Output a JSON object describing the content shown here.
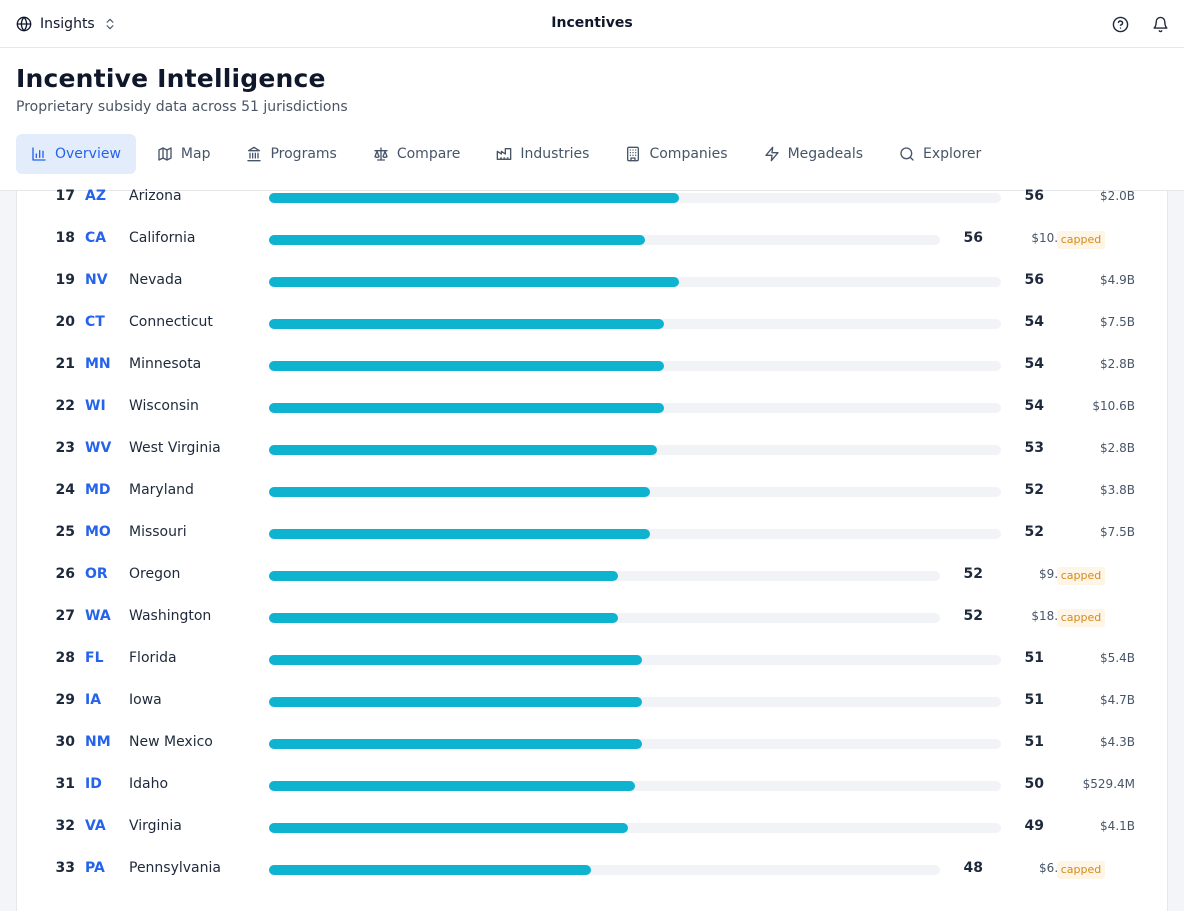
{
  "topbar": {
    "workspace_label": "Insights",
    "title": "Incentives"
  },
  "header": {
    "title": "Incentive Intelligence",
    "subtitle": "Proprietary subsidy data across 51 jurisdictions"
  },
  "tabs": [
    {
      "label": "Overview",
      "icon": "bar-chart-icon",
      "active": true
    },
    {
      "label": "Map",
      "icon": "map-icon",
      "active": false
    },
    {
      "label": "Programs",
      "icon": "landmark-icon",
      "active": false
    },
    {
      "label": "Compare",
      "icon": "scale-icon",
      "active": false
    },
    {
      "label": "Industries",
      "icon": "factory-icon",
      "active": false
    },
    {
      "label": "Companies",
      "icon": "building-icon",
      "active": false
    },
    {
      "label": "Megadeals",
      "icon": "zap-icon",
      "active": false
    },
    {
      "label": "Explorer",
      "icon": "search-icon",
      "active": false
    }
  ],
  "colors": {
    "accent": "#2563eb",
    "bar_fill": "#0db3cf",
    "bar_track": "#f1f3f6",
    "badge_text": "#d68a1a",
    "badge_bg": "#fef5e7"
  },
  "score_max": 100,
  "rankings": [
    {
      "rank": "17",
      "code": "AZ",
      "name": "Arizona",
      "score": "56",
      "amount": "$2.0B",
      "capped": false
    },
    {
      "rank": "18",
      "code": "CA",
      "name": "California",
      "score": "56",
      "amount": "$10.1B",
      "capped": true
    },
    {
      "rank": "19",
      "code": "NV",
      "name": "Nevada",
      "score": "56",
      "amount": "$4.9B",
      "capped": false
    },
    {
      "rank": "20",
      "code": "CT",
      "name": "Connecticut",
      "score": "54",
      "amount": "$7.5B",
      "capped": false
    },
    {
      "rank": "21",
      "code": "MN",
      "name": "Minnesota",
      "score": "54",
      "amount": "$2.8B",
      "capped": false
    },
    {
      "rank": "22",
      "code": "WI",
      "name": "Wisconsin",
      "score": "54",
      "amount": "$10.6B",
      "capped": false
    },
    {
      "rank": "23",
      "code": "WV",
      "name": "West Virginia",
      "score": "53",
      "amount": "$2.8B",
      "capped": false
    },
    {
      "rank": "24",
      "code": "MD",
      "name": "Maryland",
      "score": "52",
      "amount": "$3.8B",
      "capped": false
    },
    {
      "rank": "25",
      "code": "MO",
      "name": "Missouri",
      "score": "52",
      "amount": "$7.5B",
      "capped": false
    },
    {
      "rank": "26",
      "code": "OR",
      "name": "Oregon",
      "score": "52",
      "amount": "$9.7B",
      "capped": true
    },
    {
      "rank": "27",
      "code": "WA",
      "name": "Washington",
      "score": "52",
      "amount": "$18.9B",
      "capped": true
    },
    {
      "rank": "28",
      "code": "FL",
      "name": "Florida",
      "score": "51",
      "amount": "$5.4B",
      "capped": false
    },
    {
      "rank": "29",
      "code": "IA",
      "name": "Iowa",
      "score": "51",
      "amount": "$4.7B",
      "capped": false
    },
    {
      "rank": "30",
      "code": "NM",
      "name": "New Mexico",
      "score": "51",
      "amount": "$4.3B",
      "capped": false
    },
    {
      "rank": "31",
      "code": "ID",
      "name": "Idaho",
      "score": "50",
      "amount": "$529.4M",
      "capped": false
    },
    {
      "rank": "32",
      "code": "VA",
      "name": "Virginia",
      "score": "49",
      "amount": "$4.1B",
      "capped": false
    },
    {
      "rank": "33",
      "code": "PA",
      "name": "Pennsylvania",
      "score": "48",
      "amount": "$6.9B",
      "capped": true
    }
  ],
  "badge_label": "capped"
}
